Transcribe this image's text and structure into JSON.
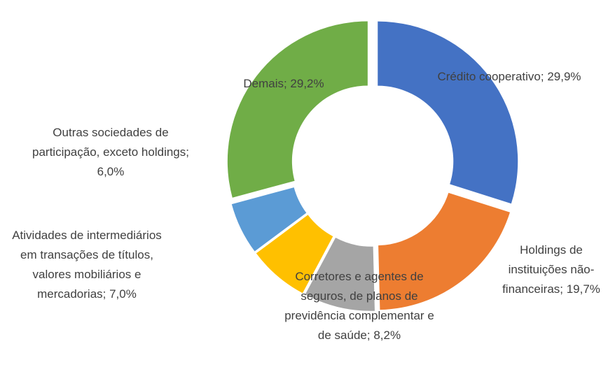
{
  "chart_data": {
    "type": "donut",
    "labels": [
      "Crédito cooperativo; 29,9%",
      "Holdings de instituições não-financeiras; 19,7%",
      "Corretores e agentes de seguros, de planos de previdência complementar e de saúde; 8,2%",
      "Atividades de intermediários em transações de títulos, valores mobiliários e mercadorias; 7,0%",
      "Outras sociedades de participação, exceto holdings; 6,0%",
      "Demais; 29,2%"
    ],
    "values": [
      29.9,
      19.7,
      8.2,
      7.0,
      6.0,
      29.2
    ],
    "colors": [
      "#4472c4",
      "#ed7d31",
      "#a5a5a5",
      "#ffc000",
      "#5b9bd5",
      "#70ad47"
    ]
  }
}
